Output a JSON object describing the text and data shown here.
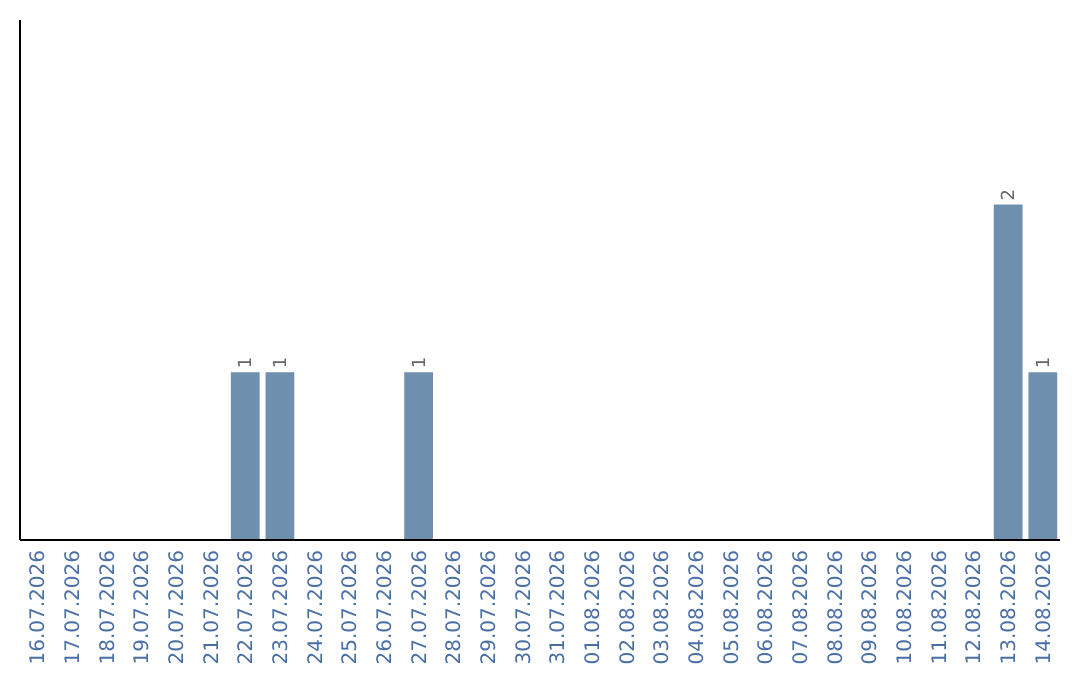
{
  "chart_data": {
    "type": "bar",
    "categories": [
      "16.07.2026",
      "17.07.2026",
      "18.07.2026",
      "19.07.2026",
      "20.07.2026",
      "21.07.2026",
      "22.07.2026",
      "23.07.2026",
      "24.07.2026",
      "25.07.2026",
      "26.07.2026",
      "27.07.2026",
      "28.07.2026",
      "29.07.2026",
      "30.07.2026",
      "31.07.2026",
      "01.08.2026",
      "02.08.2026",
      "03.08.2026",
      "04.08.2026",
      "05.08.2026",
      "06.08.2026",
      "07.08.2026",
      "08.08.2026",
      "09.08.2026",
      "10.08.2026",
      "11.08.2026",
      "12.08.2026",
      "13.08.2026",
      "14.08.2026"
    ],
    "values": [
      0,
      0,
      0,
      0,
      0,
      0,
      1,
      1,
      0,
      0,
      0,
      1,
      0,
      0,
      0,
      0,
      0,
      0,
      0,
      0,
      0,
      0,
      0,
      0,
      0,
      0,
      0,
      0,
      2,
      1
    ],
    "value_labels": [
      null,
      null,
      null,
      null,
      null,
      null,
      "1",
      "1",
      null,
      null,
      null,
      "1",
      null,
      null,
      null,
      null,
      null,
      null,
      null,
      null,
      null,
      null,
      null,
      null,
      null,
      null,
      null,
      null,
      "2",
      "1"
    ],
    "color": "#6e8fae",
    "ylim": [
      0,
      3.1
    ],
    "tick_labels": "x"
  }
}
